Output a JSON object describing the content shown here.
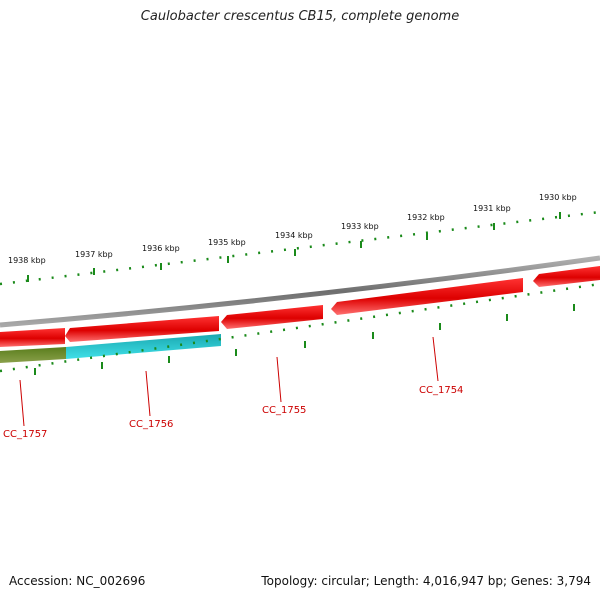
{
  "title": "Caulobacter crescentus CB15, complete genome",
  "accession_text": "Accession: NC_002696",
  "stats_text": "Topology: circular; Length: 4,016,947 bp; Genes: 3,794",
  "colors": {
    "backbone": "#808080",
    "forward_gene": "#ee1111",
    "reverse_gene": "#ee1111",
    "feature_a": "#6b8e23",
    "feature_b": "#22c8d0",
    "tick": "#1a8a1a",
    "label": "#cc0000"
  },
  "scale_labels_outer": [
    "1938 kbp",
    "1937 kbp",
    "1936 kbp",
    "1935 kbp",
    "1934 kbp",
    "1933 kbp",
    "1932 kbp",
    "1931 kbp",
    "1930 kbp"
  ],
  "gene_labels": [
    "CC_1757",
    "CC_1756",
    "CC_1755",
    "CC_1754"
  ]
}
